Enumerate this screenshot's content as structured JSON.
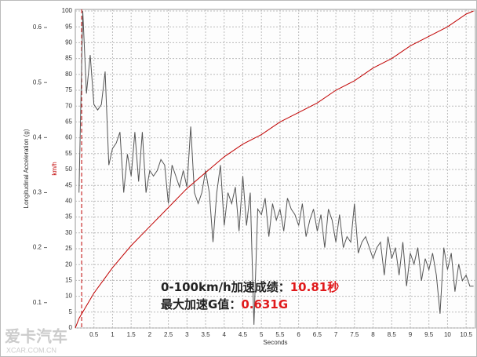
{
  "chart_data": {
    "type": "line",
    "y_label": "Longitudinal Acceleration (g)",
    "y2_label": "km/h",
    "x_label": "Seconds",
    "xlim": [
      0,
      10.75
    ],
    "xticks": [
      0.5,
      1,
      1.5,
      2,
      2.5,
      3,
      3.5,
      4,
      4.5,
      5,
      5.5,
      6,
      6.5,
      7,
      7.5,
      8,
      8.5,
      9,
      9.5,
      10,
      10.5
    ],
    "ylim": [
      0.054,
      0.63
    ],
    "yticks": [
      0.1,
      0.2,
      0.3,
      0.4,
      0.5,
      0.6
    ],
    "y2lim": [
      0,
      100
    ],
    "y2ticks": [
      0,
      5,
      10,
      15,
      20,
      25,
      30,
      35,
      40,
      45,
      50,
      55,
      60,
      65,
      70,
      75,
      80,
      85,
      90,
      95,
      100
    ],
    "grid": true,
    "start_marker": 0.17,
    "start_marker_color": "#c00000",
    "series": [
      {
        "name": "Longitudinal Acceleration (g)",
        "color": "#555555",
        "x": [
          0.1,
          0.2,
          0.3,
          0.4,
          0.5,
          0.6,
          0.7,
          0.8,
          0.9,
          1.0,
          1.1,
          1.2,
          1.3,
          1.4,
          1.5,
          1.6,
          1.7,
          1.8,
          1.9,
          2.0,
          2.1,
          2.2,
          2.3,
          2.4,
          2.5,
          2.6,
          2.7,
          2.8,
          2.9,
          3.0,
          3.1,
          3.2,
          3.3,
          3.4,
          3.5,
          3.6,
          3.7,
          3.8,
          3.9,
          4.0,
          4.1,
          4.2,
          4.3,
          4.4,
          4.5,
          4.6,
          4.7,
          4.8,
          4.9,
          5.0,
          5.1,
          5.2,
          5.3,
          5.4,
          5.5,
          5.6,
          5.7,
          5.8,
          5.9,
          6.0,
          6.1,
          6.2,
          6.3,
          6.4,
          6.5,
          6.6,
          6.7,
          6.8,
          6.9,
          7.0,
          7.1,
          7.2,
          7.3,
          7.4,
          7.5,
          7.6,
          7.7,
          7.8,
          7.9,
          8.0,
          8.1,
          8.2,
          8.3,
          8.4,
          8.5,
          8.6,
          8.7,
          8.8,
          8.9,
          9.0,
          9.1,
          9.2,
          9.3,
          9.4,
          9.5,
          9.6,
          9.7,
          9.8,
          9.9,
          10.0,
          10.1,
          10.2,
          10.3,
          10.4,
          10.5,
          10.6,
          10.7
        ],
        "values": [
          0.3,
          0.63,
          0.48,
          0.55,
          0.46,
          0.45,
          0.46,
          0.52,
          0.35,
          0.38,
          0.39,
          0.41,
          0.3,
          0.37,
          0.33,
          0.41,
          0.32,
          0.41,
          0.3,
          0.34,
          0.33,
          0.34,
          0.36,
          0.35,
          0.28,
          0.35,
          0.33,
          0.31,
          0.34,
          0.31,
          0.42,
          0.3,
          0.28,
          0.3,
          0.34,
          0.3,
          0.21,
          0.3,
          0.35,
          0.24,
          0.3,
          0.28,
          0.31,
          0.23,
          0.33,
          0.24,
          0.3,
          0.06,
          0.27,
          0.26,
          0.29,
          0.22,
          0.28,
          0.25,
          0.27,
          0.23,
          0.29,
          0.27,
          0.26,
          0.24,
          0.28,
          0.22,
          0.25,
          0.27,
          0.23,
          0.26,
          0.2,
          0.27,
          0.25,
          0.21,
          0.26,
          0.2,
          0.22,
          0.21,
          0.28,
          0.19,
          0.21,
          0.22,
          0.2,
          0.18,
          0.2,
          0.21,
          0.15,
          0.22,
          0.18,
          0.2,
          0.15,
          0.21,
          0.13,
          0.19,
          0.17,
          0.2,
          0.14,
          0.18,
          0.16,
          0.19,
          0.15,
          0.08,
          0.2,
          0.16,
          0.19,
          0.12,
          0.17,
          0.14,
          0.15,
          0.13,
          0.13
        ]
      },
      {
        "name": "km/h",
        "color": "#c00000",
        "axis": "y2",
        "x": [
          0,
          0.1,
          0.5,
          1,
          1.5,
          2,
          2.5,
          3,
          3.5,
          4,
          4.5,
          5,
          5.5,
          6,
          6.5,
          7,
          7.5,
          8,
          8.5,
          9,
          9.5,
          10,
          10.5,
          10.7
        ],
        "values": [
          0,
          3,
          11,
          19,
          26,
          32,
          38,
          44,
          49,
          54,
          58,
          61,
          65,
          68,
          71,
          75,
          78,
          82,
          85,
          89,
          92,
          95,
          99,
          100
        ]
      }
    ],
    "annotations": [
      {
        "text": "0-100km/h加速成绩：",
        "highlight": "10.81秒"
      },
      {
        "text": "最大加速G值：",
        "highlight": "0.631G"
      }
    ],
    "watermark": "爱卡汽车",
    "watermark_sub": "XCAR.COM.CN"
  }
}
